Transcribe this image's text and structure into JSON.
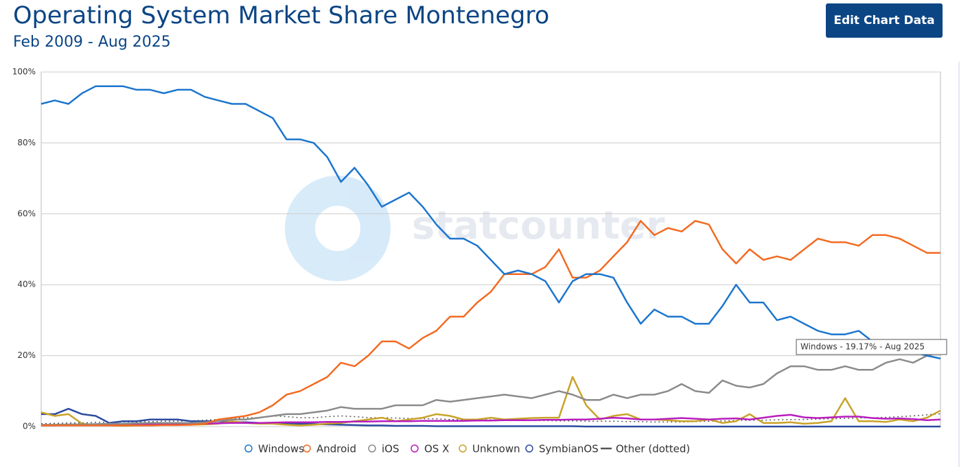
{
  "chart_data": {
    "type": "line",
    "title": "Operating System Market Share Montenegro",
    "subtitle": "Feb 2009 - Aug 2025",
    "button": "Edit Chart Data",
    "annotation": "Windows - 19.17% - Aug 2025",
    "ylim": [
      0,
      100
    ],
    "yticks": [
      {
        "value": 0,
        "label": "0%"
      },
      {
        "value": 20,
        "label": "20%"
      },
      {
        "value": 40,
        "label": "40%"
      },
      {
        "value": 60,
        "label": "60%"
      },
      {
        "value": 80,
        "label": "80%"
      },
      {
        "value": 100,
        "label": "100%"
      }
    ],
    "grid": true,
    "legend": "bottom",
    "series": [
      {
        "name": "Windows",
        "color": "#1b75cf",
        "values": [
          91,
          92,
          91,
          94,
          96,
          96,
          96,
          95,
          95,
          94,
          95,
          95,
          93,
          92,
          91,
          91,
          89,
          87,
          81,
          81,
          80,
          76,
          69,
          73,
          68,
          62,
          64,
          66,
          62,
          57,
          53,
          53,
          51,
          47,
          43,
          44,
          43,
          41,
          35,
          41,
          43,
          43,
          42,
          35,
          29,
          33,
          31,
          31,
          29,
          29,
          34,
          40,
          35,
          35,
          30,
          31,
          29,
          27,
          26,
          26,
          27,
          24,
          21,
          21,
          21,
          20,
          19.17
        ]
      },
      {
        "name": "Android",
        "color": "#f36a21",
        "values": [
          0.3,
          0.3,
          0.3,
          0.3,
          0.3,
          0.3,
          0.3,
          0.3,
          0.3,
          0.4,
          0.4,
          0.5,
          0.8,
          2,
          2.5,
          3,
          4,
          6,
          9,
          10,
          12,
          14,
          18,
          17,
          20,
          24,
          24,
          22,
          25,
          27,
          31,
          31,
          35,
          38,
          43,
          43,
          43,
          45,
          50,
          42,
          42,
          44,
          48,
          52,
          58,
          54,
          56,
          55,
          58,
          57,
          50,
          46,
          50,
          47,
          48,
          47,
          50,
          53,
          52,
          52,
          51,
          54,
          54,
          53,
          51,
          49,
          49
        ]
      },
      {
        "name": "iOS",
        "color": "#8a8a8a",
        "values": [
          0.5,
          0.5,
          0.6,
          0.6,
          0.7,
          0.8,
          0.8,
          0.9,
          1,
          1,
          1,
          1,
          1.2,
          1.5,
          2,
          2,
          2.5,
          3,
          3.5,
          3.5,
          4,
          4.5,
          5.5,
          5,
          5,
          5,
          6,
          6,
          6,
          7.5,
          7,
          7.5,
          8,
          8.5,
          9,
          8.5,
          8,
          9,
          10,
          9,
          7.5,
          7.5,
          9,
          8,
          9,
          9,
          10,
          12,
          10,
          9.5,
          13,
          11.5,
          11,
          12,
          15,
          17,
          17,
          16,
          16,
          17,
          16,
          16,
          18,
          19,
          18,
          20,
          21
        ]
      },
      {
        "name": "OS X",
        "color": "#b81cbf",
        "values": [
          0.3,
          0.3,
          0.4,
          0.4,
          0.4,
          0.5,
          0.5,
          0.6,
          0.6,
          0.7,
          0.7,
          0.8,
          0.8,
          0.9,
          1,
          1,
          1,
          1.1,
          1.2,
          1.2,
          1.2,
          1.3,
          1.3,
          1.4,
          1.4,
          1.5,
          1.5,
          1.5,
          1.6,
          1.6,
          1.6,
          1.6,
          1.7,
          1.7,
          1.8,
          1.8,
          1.8,
          1.9,
          1.9,
          2,
          2,
          2.2,
          2.5,
          2.3,
          2,
          2,
          2.2,
          2.4,
          2.2,
          2,
          2.2,
          2.3,
          2,
          2.5,
          3,
          3.3,
          2.6,
          2.4,
          2.6,
          2.8,
          2.8,
          2.4,
          2.2,
          2.3,
          2.1,
          1.8,
          2
        ]
      },
      {
        "name": "Unknown",
        "color": "#c9a227",
        "values": [
          4,
          3,
          3.5,
          0.8,
          0.5,
          0.3,
          0.2,
          0.3,
          0.4,
          0.5,
          0.5,
          0.5,
          0.6,
          0.8,
          1.5,
          1,
          0.8,
          0.8,
          0.5,
          0.3,
          0.5,
          0.8,
          1,
          1.5,
          2,
          2.5,
          1.5,
          2,
          2.5,
          3.5,
          3,
          2,
          2,
          2.5,
          2,
          2.2,
          2.4,
          2.5,
          2.5,
          14,
          6,
          2,
          3,
          3.5,
          2,
          2,
          1.8,
          1.5,
          1.5,
          2,
          1,
          1.5,
          3.5,
          1,
          1,
          1.2,
          0.8,
          1,
          1.5,
          8,
          1.5,
          1.5,
          1.3,
          2,
          1.5,
          2.5,
          4.5
        ]
      },
      {
        "name": "SymbianOS",
        "color": "#2b4ba0",
        "values": [
          3.5,
          3.5,
          5,
          3.5,
          3,
          1,
          1.5,
          1.5,
          2,
          2,
          2,
          1.5,
          1.5,
          1.5,
          1.3,
          1.2,
          1,
          1,
          0.9,
          0.8,
          0.7,
          0.6,
          0.5,
          0.4,
          0.3,
          0.3,
          0.2,
          0.2,
          0.2,
          0.1,
          0.1,
          0.1,
          0.1,
          0.1,
          0.1,
          0.1,
          0.1,
          0.1,
          0.1,
          0.1,
          0,
          0,
          0,
          0,
          0,
          0,
          0,
          0,
          0,
          0,
          0,
          0,
          0,
          0,
          0,
          0,
          0,
          0,
          0,
          0,
          0,
          0,
          0,
          0,
          0,
          0,
          0
        ]
      },
      {
        "name": "Other (dotted)",
        "color": "#555555",
        "dashed": true,
        "values": [
          0.8,
          0.9,
          1,
          1,
          1.2,
          1.2,
          1.3,
          1.3,
          1.4,
          1.5,
          1.5,
          1.6,
          1.8,
          2,
          2.2,
          2.5,
          2.5,
          3,
          2.8,
          2.5,
          2.5,
          2.8,
          3,
          2.8,
          2.5,
          2.5,
          2.4,
          2.3,
          2.2,
          2.2,
          2,
          2,
          1.9,
          1.9,
          1.8,
          1.8,
          1.7,
          1.7,
          1.6,
          1.6,
          1.5,
          1.5,
          1.5,
          1.4,
          1.4,
          1.3,
          1.3,
          1.3,
          1.4,
          1.5,
          1.6,
          1.7,
          1.8,
          1.8,
          1.9,
          2,
          2,
          2.1,
          2.2,
          2.3,
          2.4,
          2.5,
          2.6,
          2.8,
          3,
          3.3,
          3.6
        ]
      }
    ]
  }
}
